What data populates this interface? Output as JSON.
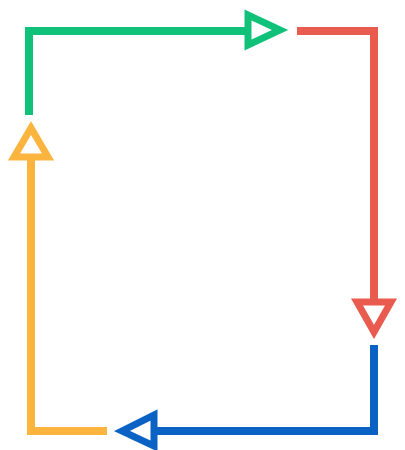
{
  "diagram": {
    "type": "cycle",
    "direction": "clockwise",
    "arrows": [
      {
        "id": "top",
        "color": "#10C17A",
        "points": "right"
      },
      {
        "id": "right",
        "color": "#E95B4F",
        "points": "down"
      },
      {
        "id": "bottom",
        "color": "#0B62C5",
        "points": "left"
      },
      {
        "id": "left",
        "color": "#FBB53E",
        "points": "up"
      }
    ]
  }
}
